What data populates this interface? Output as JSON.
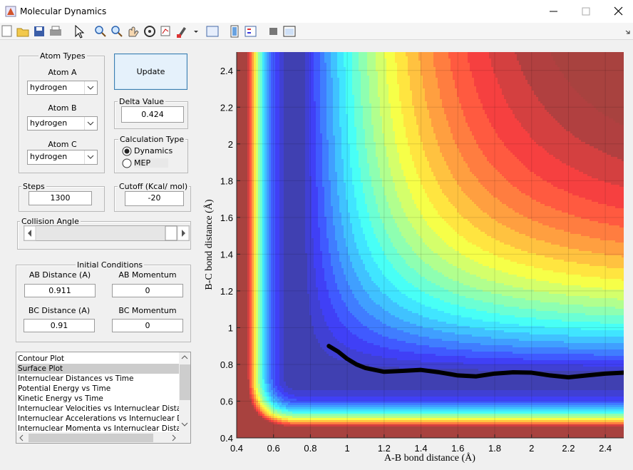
{
  "window": {
    "title": "Molecular Dynamics"
  },
  "controls": {
    "atom_types": {
      "title": "Atom Types",
      "atoms": [
        {
          "label": "Atom A",
          "value": "hydrogen"
        },
        {
          "label": "Atom B",
          "value": "hydrogen"
        },
        {
          "label": "Atom C",
          "value": "hydrogen"
        }
      ]
    },
    "update": "Update",
    "delta": {
      "label": "Delta Value",
      "value": 0.424
    },
    "calc_type": {
      "label": "Calculation Type",
      "options": [
        "Dynamics",
        "MEP"
      ],
      "selected": 0
    },
    "steps": {
      "label": "Steps",
      "value": 1300
    },
    "cutoff": {
      "label": "Cutoff (Kcal/ mol)",
      "value": -20
    },
    "collision_angle": {
      "label": "Collision Angle"
    },
    "initial": {
      "title": "Initial Conditions",
      "fields": [
        {
          "label": "AB Distance (A)",
          "value": 0.911
        },
        {
          "label": "AB Momentum",
          "value": 0
        },
        {
          "label": "BC Distance (A)",
          "value": 0.91
        },
        {
          "label": "BC Momentum",
          "value": 0
        }
      ]
    },
    "plot_list": {
      "items": [
        "Contour Plot",
        "Surface Plot",
        "Internuclear Distances vs Time",
        "Potential Energy vs Time",
        "Kinetic Energy vs Time",
        "Internuclear Velocities vs Internuclear Distance",
        "Internuclear Accelerations vs Internuclear Distance",
        "Internuclear Momenta vs Internuclear Distance"
      ],
      "selected": 1
    }
  },
  "chart_data": {
    "type": "line",
    "xlabel": "A-B bond distance (Å)",
    "ylabel": "B-C bond distance (Å)",
    "x": [
      0.9,
      0.95,
      1.0,
      1.05,
      1.1,
      1.2,
      1.3,
      1.4,
      1.5,
      1.6,
      1.7,
      1.8,
      1.9,
      2.0,
      2.1,
      2.2,
      2.3,
      2.4,
      2.5
    ],
    "series": [
      {
        "color": "#000000",
        "values": [
          0.9,
          0.87,
          0.83,
          0.8,
          0.78,
          0.76,
          0.765,
          0.77,
          0.757,
          0.74,
          0.735,
          0.75,
          0.757,
          0.755,
          0.74,
          0.73,
          0.74,
          0.75,
          0.755
        ]
      }
    ],
    "xlim": [
      0.4,
      2.5
    ],
    "ylim": [
      0.4,
      2.5
    ],
    "xticks": [
      0.4,
      0.6,
      0.8,
      1,
      1.2,
      1.4,
      1.6,
      1.8,
      2,
      2.2,
      2.4
    ],
    "yticks": [
      0.4,
      0.6,
      0.8,
      1,
      1.2,
      1.4,
      1.6,
      1.8,
      2,
      2.2,
      2.4
    ],
    "grid": true
  }
}
